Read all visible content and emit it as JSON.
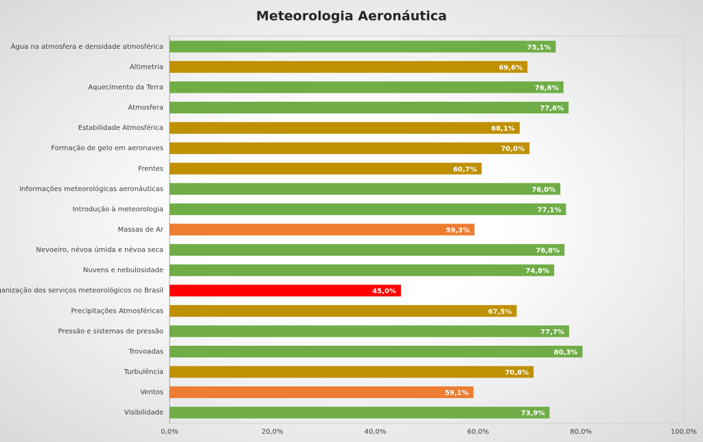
{
  "chart_data": {
    "type": "bar",
    "orientation": "horizontal",
    "title": "Meteorologia Aeronáutica",
    "categories": [
      "Água na atmosfera e densidade atmosférica",
      "Altimetria",
      "Aquecimento da Terra",
      "Atmosfera",
      "Estabilidade Atmosférica",
      "Formação de gelo em aeronaves",
      "Frentes",
      "Informações meteorológicas aeronáuticas",
      "Introdução à meteorologia",
      "Massas de Ar",
      "Nevoeiro, névoa úmida e névoa seca",
      "Nuvens e nebulosidade",
      "Organização dos serviços meteorológicos no Brasil",
      "Precipitações Atmosféricas",
      "Pressão e sistemas de pressão",
      "Trovoadas",
      "Turbulência",
      "Ventos",
      "Visibilidade"
    ],
    "values": [
      75.1,
      69.6,
      76.6,
      77.6,
      68.1,
      70.0,
      60.7,
      76.0,
      77.1,
      59.3,
      76.8,
      74.8,
      45.0,
      67.5,
      77.7,
      80.3,
      70.8,
      59.1,
      73.9
    ],
    "value_labels": [
      "75,1%",
      "69,6%",
      "76,6%",
      "77,6%",
      "68,1%",
      "70,0%",
      "60,7%",
      "76,0%",
      "77,1%",
      "59,3%",
      "76,8%",
      "74,8%",
      "45,0%",
      "67,5%",
      "77,7%",
      "80,3%",
      "70,8%",
      "59,1%",
      "73,9%"
    ],
    "colors": [
      "#70ad47",
      "#bf9000",
      "#70ad47",
      "#70ad47",
      "#bf9000",
      "#bf9000",
      "#bf9000",
      "#70ad47",
      "#70ad47",
      "#ed7d31",
      "#70ad47",
      "#70ad47",
      "#ff0000",
      "#bf9000",
      "#70ad47",
      "#70ad47",
      "#bf9000",
      "#ed7d31",
      "#70ad47"
    ],
    "xlim": [
      0,
      100
    ],
    "xticks": [
      {
        "value": 0,
        "label": "0,0%"
      },
      {
        "value": 20,
        "label": "20,0%"
      },
      {
        "value": 40,
        "label": "40,0%"
      },
      {
        "value": 60,
        "label": "60,0%"
      },
      {
        "value": 80,
        "label": "80,0%"
      },
      {
        "value": 100,
        "label": "100,0%"
      }
    ],
    "grid": false
  }
}
